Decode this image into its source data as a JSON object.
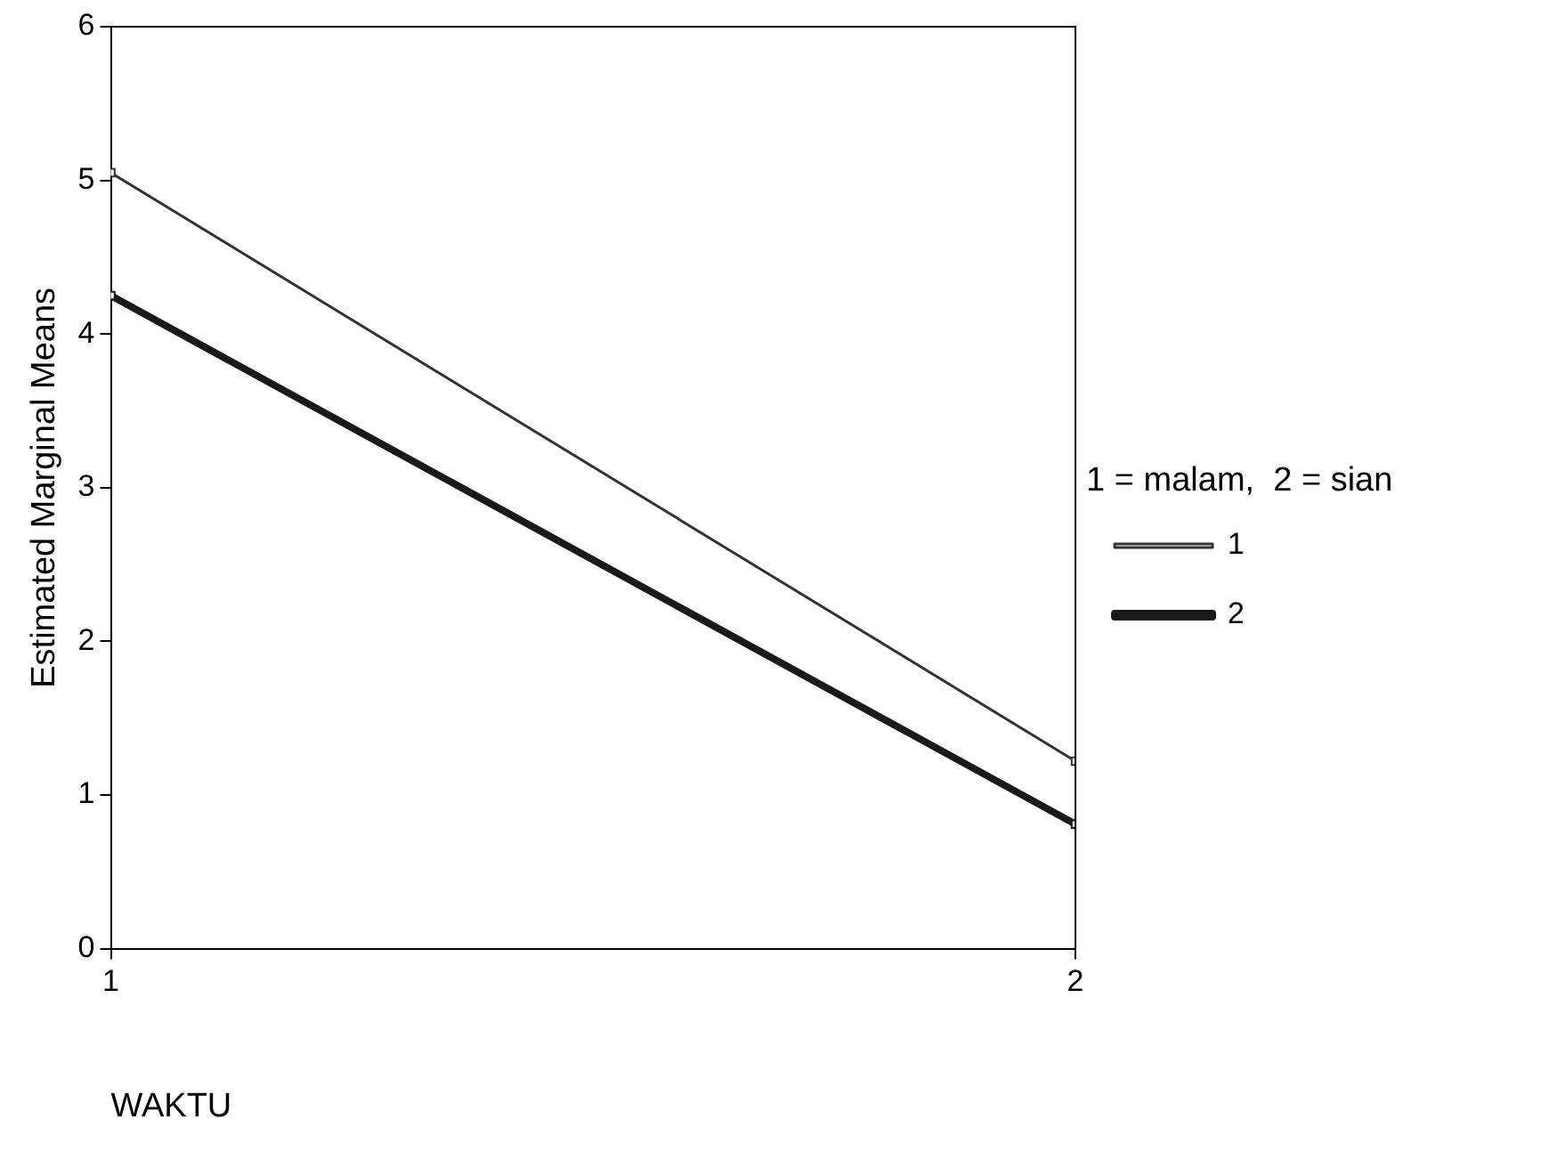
{
  "chart_data": {
    "type": "line",
    "xlabel": "WAKTU",
    "ylabel": "Estimated Marginal Means",
    "legend_title": "1 = malam,  2 = sian",
    "x": [
      1,
      2
    ],
    "xlim": [
      1,
      2
    ],
    "xticks": [
      1,
      2
    ],
    "ylim": [
      0,
      6
    ],
    "yticks": [
      0,
      1,
      2,
      3,
      4,
      5,
      6
    ],
    "grid": false,
    "legend": "right",
    "marker": "square",
    "line_style": "solid",
    "series": [
      {
        "name": "1",
        "color": "#333333",
        "values": [
          5.05,
          1.22
        ]
      },
      {
        "name": "2",
        "color": "#1a1a1a",
        "values": [
          4.25,
          0.81
        ]
      }
    ]
  }
}
